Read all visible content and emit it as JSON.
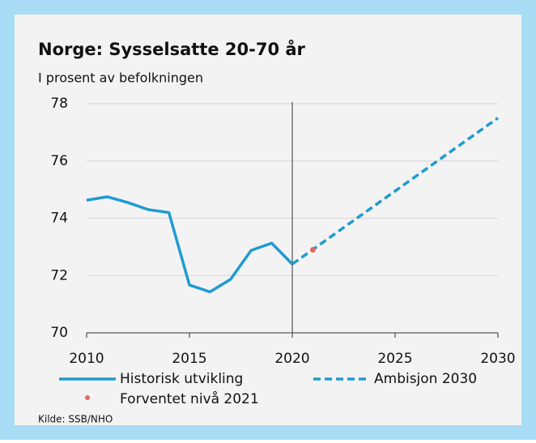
{
  "chart_data": {
    "type": "line",
    "title": "Norge: Sysselsatte 20-70  år",
    "subtitle": "I prosent av befolkningen",
    "source": "Kilde: SSB/NHO",
    "xlim": [
      2010,
      2030
    ],
    "xticks": [
      2010,
      2015,
      2020,
      2025,
      2030
    ],
    "ylim": [
      70,
      78
    ],
    "yticks": [
      70,
      72,
      74,
      76,
      78
    ],
    "grid": true,
    "vline_x": 2020,
    "series": [
      {
        "name": "Historisk utvikling",
        "color": "#1f9bd1",
        "style": "solid",
        "x": [
          2010,
          2011,
          2012,
          2013,
          2014,
          2015,
          2016,
          2017,
          2018,
          2019,
          2020
        ],
        "values": [
          74.63,
          74.75,
          74.55,
          74.3,
          74.2,
          71.67,
          71.43,
          71.87,
          72.88,
          73.13,
          72.4
        ]
      },
      {
        "name": "Ambisjon 2030",
        "color": "#1f9bd1",
        "style": "dashed",
        "x": [
          2020,
          2030
        ],
        "values": [
          72.4,
          77.5
        ]
      },
      {
        "name": "Forventet nivå 2021",
        "color": "#e06a5f",
        "style": "point",
        "x": [
          2021
        ],
        "values": [
          72.9
        ]
      }
    ]
  }
}
